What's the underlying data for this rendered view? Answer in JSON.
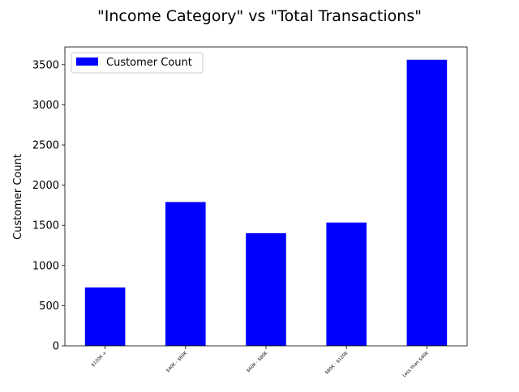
{
  "chart_data": {
    "type": "bar",
    "title": "\"Income Category\" vs \"Total Transactions\"",
    "xlabel": "",
    "ylabel": "Customer Count",
    "categories": [
      "$120K +",
      "$40K - $60K",
      "$60K - $80K",
      "$80K - $120K",
      "Less than $40K"
    ],
    "series": [
      {
        "name": "Customer Count",
        "values": [
          727,
          1790,
          1402,
          1535,
          3561
        ],
        "color": "#0000ff"
      }
    ],
    "ylim": [
      0,
      3720
    ],
    "yticks": [
      0,
      500,
      1000,
      1500,
      2000,
      2500,
      3000,
      3500
    ],
    "legend": {
      "position": "upper-left"
    },
    "grid": false
  }
}
